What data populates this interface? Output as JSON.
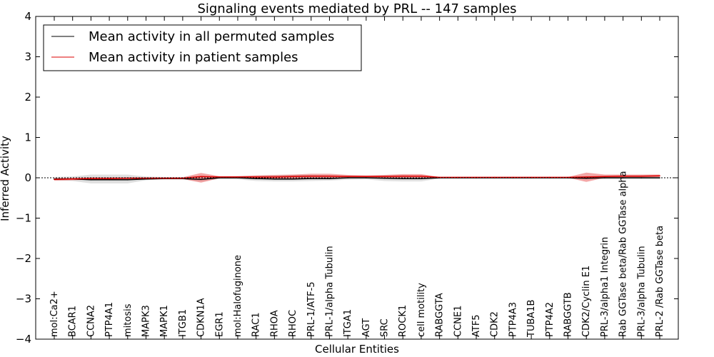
{
  "chart_data": {
    "type": "line",
    "title": "Signaling events mediated by PRL -- 147 samples",
    "xlabel": "Cellular Entities",
    "ylabel": "Inferred Activity",
    "ylim": [
      -4,
      4
    ],
    "yticks": [
      -4,
      -3,
      -2,
      -1,
      0,
      1,
      2,
      3,
      4
    ],
    "ytick_labels": [
      "−4",
      "−3",
      "−2",
      "−1",
      "0",
      "1",
      "2",
      "3",
      "4"
    ],
    "legend_position": "top-left",
    "categories": [
      "mol:Ca2+",
      "BCAR1",
      "CCNA2",
      "PTP4A1",
      "mitosis",
      "MAPK3",
      "MAPK1",
      "ITGB1",
      "CDKN1A",
      "EGR1",
      "mol:Halofuginone",
      "RAC1",
      "RHOA",
      "RHOC",
      "PRL-1/ATF-5",
      "PRL-1/alpha Tubulin",
      "ITGA1",
      "AGT",
      "SRC",
      "ROCK1",
      "cell motility",
      "RABGGTA",
      "CCNE1",
      "ATF5",
      "CDK2",
      "PTP4A3",
      "TUBA1B",
      "PTP4A2",
      "RABGGTB",
      "CDK2/Cyclin E1",
      "PRL-3/alpha1 Integrin",
      "Rab GGTase beta/Rab GGTase alpha",
      "PRL-3/alpha Tubulin",
      "PRL-2 /Rab GGTase beta"
    ],
    "series": [
      {
        "name": "Mean activity in all permuted samples",
        "color": "#000000",
        "band_color": "#bbbbbb",
        "values": [
          -0.03,
          -0.03,
          -0.05,
          -0.05,
          -0.05,
          -0.03,
          -0.02,
          -0.02,
          -0.04,
          0.0,
          0.0,
          -0.02,
          -0.03,
          -0.03,
          -0.02,
          -0.02,
          0.0,
          0.0,
          -0.01,
          -0.02,
          -0.02,
          0.0,
          0.0,
          0.0,
          0.0,
          0.0,
          0.0,
          0.0,
          0.0,
          -0.01,
          0.0,
          0.0,
          0.0,
          0.0
        ],
        "upper": [
          0.02,
          0.03,
          0.08,
          0.08,
          0.08,
          0.03,
          0.02,
          0.02,
          0.03,
          0.02,
          0.04,
          0.05,
          0.06,
          0.07,
          0.07,
          0.06,
          0.05,
          0.04,
          0.06,
          0.06,
          0.05,
          0.02,
          0.02,
          0.02,
          0.02,
          0.02,
          0.02,
          0.02,
          0.02,
          0.04,
          0.03,
          0.03,
          0.03,
          0.03
        ],
        "lower": [
          -0.06,
          -0.08,
          -0.14,
          -0.14,
          -0.14,
          -0.06,
          -0.04,
          -0.04,
          -0.08,
          -0.03,
          -0.04,
          -0.08,
          -0.09,
          -0.09,
          -0.08,
          -0.07,
          -0.05,
          -0.04,
          -0.08,
          -0.09,
          -0.09,
          -0.02,
          -0.02,
          -0.02,
          -0.02,
          -0.02,
          -0.02,
          -0.02,
          -0.02,
          -0.03,
          -0.03,
          -0.03,
          -0.03,
          -0.03
        ]
      },
      {
        "name": "Mean activity in patient samples",
        "color": "#dd0000",
        "band_color": "#dd0000",
        "values": [
          -0.04,
          -0.03,
          -0.02,
          -0.02,
          -0.01,
          -0.01,
          -0.01,
          -0.01,
          0.03,
          0.02,
          0.02,
          0.02,
          0.02,
          0.03,
          0.04,
          0.04,
          0.03,
          0.03,
          0.03,
          0.04,
          0.04,
          0.01,
          0.01,
          0.01,
          0.01,
          0.01,
          0.01,
          0.01,
          0.01,
          0.02,
          0.03,
          0.04,
          0.04,
          0.05
        ],
        "upper": [
          -0.01,
          0.0,
          0.01,
          0.01,
          0.01,
          0.01,
          0.01,
          0.01,
          0.12,
          0.04,
          0.04,
          0.06,
          0.07,
          0.08,
          0.1,
          0.1,
          0.07,
          0.06,
          0.07,
          0.09,
          0.09,
          0.02,
          0.02,
          0.02,
          0.02,
          0.02,
          0.02,
          0.02,
          0.02,
          0.13,
          0.08,
          0.08,
          0.08,
          0.08
        ],
        "lower": [
          -0.07,
          -0.06,
          -0.05,
          -0.05,
          -0.04,
          -0.03,
          -0.03,
          -0.03,
          -0.12,
          -0.01,
          0.0,
          -0.01,
          -0.02,
          -0.02,
          -0.01,
          -0.01,
          0.0,
          0.0,
          0.0,
          0.0,
          0.0,
          0.0,
          0.0,
          0.0,
          0.0,
          0.0,
          0.0,
          0.0,
          0.0,
          -0.1,
          0.0,
          0.01,
          0.01,
          0.02
        ]
      }
    ]
  }
}
